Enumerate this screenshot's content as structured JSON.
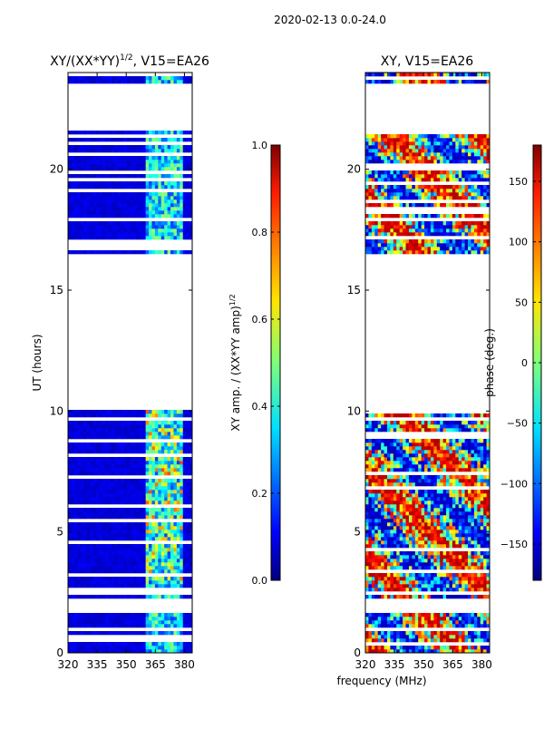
{
  "suptitle": "2020-02-13 0.0-24.0",
  "shared_xlabel": "frequency (MHz)",
  "chart_data": [
    {
      "type": "heatmap",
      "title_main": "XY/(XX*YY)",
      "title_sup": "1/2",
      "title_tail": ", V15=EA26",
      "ylabel": "UT (hours)",
      "xlim": [
        320,
        384
      ],
      "ylim": [
        0,
        24
      ],
      "xticks": [
        320,
        335,
        350,
        365,
        380
      ],
      "yticks": [
        0,
        5,
        10,
        15,
        20
      ],
      "colorbar": {
        "label": "XY amp. / (XX*YY amp)",
        "label_sup": "1/2",
        "range": [
          0.0,
          1.0
        ],
        "ticks": [
          "0.0",
          "0.2",
          "0.4",
          "0.6",
          "0.8",
          "1.0"
        ],
        "colormap": "jet"
      },
      "data_time_ranges_h": [
        [
          0.0,
          1.6
        ],
        [
          2.3,
          2.4
        ],
        [
          2.6,
          10.0
        ],
        [
          16.5,
          21.6
        ],
        [
          23.5,
          24.0
        ]
      ],
      "high_band_mhz": [
        360,
        378
      ]
    },
    {
      "type": "heatmap",
      "title": "XY, V15=EA26",
      "xlim": [
        320,
        384
      ],
      "ylim": [
        0,
        24
      ],
      "xticks": [
        320,
        335,
        350,
        365,
        380
      ],
      "yticks": [
        0,
        5,
        10,
        15,
        20
      ],
      "colorbar": {
        "label": "phase (deg.)",
        "range": [
          -180,
          180
        ],
        "ticks": [
          "−150",
          "−100",
          "−50",
          "0",
          "50",
          "100",
          "150"
        ],
        "colormap": "jet"
      },
      "data_time_ranges_h": [
        [
          0.0,
          1.6
        ],
        [
          2.3,
          2.4
        ],
        [
          2.6,
          10.0
        ],
        [
          16.5,
          21.6
        ],
        [
          23.5,
          24.0
        ]
      ]
    }
  ]
}
